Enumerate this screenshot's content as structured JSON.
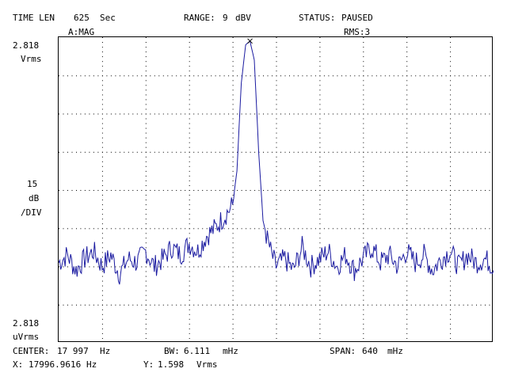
{
  "header": {
    "time_len_label": "TIME LEN",
    "time_len_value": "625",
    "time_len_unit": "Sec",
    "range_label": "RANGE:",
    "range_value": "9",
    "range_unit": "dBV",
    "status_label": "STATUS:",
    "status_value": "PAUSED",
    "trace_label": "A:MAG",
    "averaging_label": "RMS:3"
  },
  "y_axis": {
    "top_value": "2.818",
    "top_unit": "Vrms",
    "scale_value": "15",
    "scale_unit": "dB",
    "scale_per": "/DIV",
    "bottom_value": "2.818",
    "bottom_unit": "uVrms"
  },
  "footer": {
    "center_label": "CENTER:",
    "center_value": "17 997",
    "center_unit": "Hz",
    "bw_label": "BW:",
    "bw_value": "6.111",
    "bw_unit": "mHz",
    "span_label": "SPAN:",
    "span_value": "640",
    "span_unit": "mHz",
    "marker_x_label": "X:",
    "marker_x_value": "17996.9616",
    "marker_x_unit": "Hz",
    "marker_y_label": "Y:",
    "marker_y_value": "1.598",
    "marker_y_unit": "Vrms"
  },
  "colors": {
    "trace": "#1a1aa0",
    "grid": "#000000",
    "background": "#ffffff"
  },
  "marker_icon": "x-marker-icon",
  "chart_data": {
    "type": "line",
    "title": "",
    "xlabel": "",
    "ylabel": "",
    "x_range_hz": [
      17996.677,
      17997.317
    ],
    "y_scale_db_per_div": 15,
    "y_top": "2.818 Vrms",
    "y_bottom": "2.818 uVrms",
    "grid": true,
    "peak": {
      "x_hz": 17996.9616,
      "y_vrms": 1.598
    },
    "noise_floor_div": 2.1,
    "series": [
      {
        "x_div": [
          0,
          0.2,
          0.4,
          0.6,
          0.8,
          1.0,
          1.2,
          1.4,
          1.6,
          1.8,
          2.0,
          2.2,
          2.4,
          2.6,
          2.8,
          3.0,
          3.2,
          3.4,
          3.6,
          3.8,
          4.0,
          4.1,
          4.2,
          4.3,
          4.4,
          4.5,
          4.6,
          4.7,
          4.8,
          4.9,
          5.0,
          5.2,
          5.4,
          5.6,
          5.8,
          6.0,
          6.2,
          6.4,
          6.6,
          6.8,
          7.0,
          7.2,
          7.4,
          7.6,
          7.8,
          8.0,
          8.2,
          8.4,
          8.6,
          8.8,
          9.0,
          9.2,
          9.4,
          9.6,
          9.8,
          10.0
        ],
        "y_div": [
          2.1,
          2.3,
          1.9,
          2.2,
          2.4,
          2.0,
          2.3,
          1.8,
          2.2,
          2.1,
          2.4,
          2.0,
          2.2,
          2.5,
          2.3,
          2.6,
          2.4,
          2.8,
          3.0,
          3.3,
          3.6,
          4.5,
          6.8,
          7.8,
          7.9,
          7.4,
          5.0,
          3.2,
          2.7,
          2.3,
          2.0,
          2.2,
          1.9,
          2.5,
          2.0,
          2.2,
          2.4,
          2.0,
          2.3,
          1.9,
          2.2,
          2.5,
          2.1,
          2.3,
          2.0,
          2.4,
          2.1,
          2.3,
          1.9,
          2.2,
          2.4,
          2.0,
          2.3,
          2.1,
          2.2,
          2.0
        ]
      }
    ]
  }
}
